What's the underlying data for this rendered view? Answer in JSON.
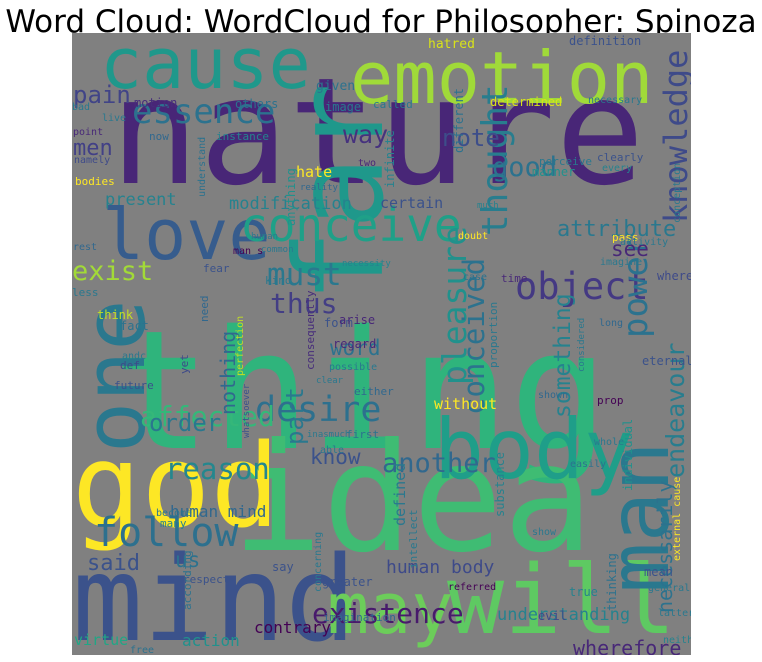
{
  "title": "Word Cloud:  WordCloud for  Philosopher: Spinoza",
  "chart_data": {
    "type": "wordcloud",
    "title": "Word Cloud:  WordCloud for  Philosopher: Spinoza",
    "background_color": "#808080",
    "palette": "viridis",
    "words": [
      {
        "text": "nature",
        "color": "#482677"
      },
      {
        "text": "thing",
        "color": "#2fb47c"
      },
      {
        "text": "idea",
        "color": "#3fbc73"
      },
      {
        "text": "emotion",
        "color": "#a0da39"
      },
      {
        "text": "mind",
        "color": "#3b528b"
      },
      {
        "text": "god",
        "color": "#fde725"
      },
      {
        "text": "will",
        "color": "#5ec962"
      },
      {
        "text": "far",
        "color": "#1f988b"
      },
      {
        "text": "cause",
        "color": "#1f988b"
      },
      {
        "text": "body",
        "color": "#1f9e89"
      },
      {
        "text": "love",
        "color": "#365c8d"
      },
      {
        "text": "one",
        "color": "#2a788e"
      },
      {
        "text": "man",
        "color": "#2a788e"
      },
      {
        "text": "may",
        "color": "#6ccd5a"
      },
      {
        "text": "essence",
        "color": "#2c728e"
      },
      {
        "text": "conceive",
        "color": "#1fa088"
      },
      {
        "text": "object",
        "color": "#443983"
      },
      {
        "text": "follow",
        "color": "#2d708e"
      },
      {
        "text": "desire",
        "color": "#2d708e"
      },
      {
        "text": "power",
        "color": "#2c728e"
      },
      {
        "text": "existence",
        "color": "#481a6c"
      },
      {
        "text": "thought",
        "color": "#287d8e"
      },
      {
        "text": "knowledge",
        "color": "#3e4a89"
      },
      {
        "text": "exist",
        "color": "#a2da37"
      },
      {
        "text": "must",
        "color": "#2a788e"
      },
      {
        "text": "reason",
        "color": "#24878e"
      },
      {
        "text": "pleasure",
        "color": "#21918c"
      },
      {
        "text": "conceived",
        "color": "#2c728e"
      },
      {
        "text": "another",
        "color": "#31688e"
      },
      {
        "text": "good",
        "color": "#2c728e"
      },
      {
        "text": "thus",
        "color": "#433e85"
      },
      {
        "text": "part",
        "color": "#2a788e"
      },
      {
        "text": "affected",
        "color": "#35b779"
      },
      {
        "text": "endeavour",
        "color": "#287d8e"
      },
      {
        "text": "pain",
        "color": "#414487"
      },
      {
        "text": "men",
        "color": "#424086"
      },
      {
        "text": "note",
        "color": "#3d4e8a"
      },
      {
        "text": "way",
        "color": "#46327e"
      },
      {
        "text": "attribute",
        "color": "#2a788e"
      },
      {
        "text": "see",
        "color": "#482878"
      },
      {
        "text": "know",
        "color": "#3b528b"
      },
      {
        "text": "said",
        "color": "#3b528b"
      },
      {
        "text": "something",
        "color": "#26828e"
      },
      {
        "text": "order",
        "color": "#2a788e"
      },
      {
        "text": "word",
        "color": "#2c728e"
      },
      {
        "text": "necessarily",
        "color": "#2c728e"
      },
      {
        "text": "us",
        "color": "#2c728e"
      },
      {
        "text": "wherefore",
        "color": "#482878"
      },
      {
        "text": "nothing",
        "color": "#31688e"
      },
      {
        "text": "defined",
        "color": "#2a788e"
      },
      {
        "text": "present",
        "color": "#26828e"
      },
      {
        "text": "modification",
        "color": "#26828e"
      },
      {
        "text": "certain",
        "color": "#3b528b"
      },
      {
        "text": "human body",
        "color": "#3e4a89"
      },
      {
        "text": "human mind",
        "color": "#31688e"
      },
      {
        "text": "understanding",
        "color": "#26828e"
      },
      {
        "text": "action",
        "color": "#21918c"
      },
      {
        "text": "contrary",
        "color": "#440154"
      },
      {
        "text": "virtue",
        "color": "#21a685"
      },
      {
        "text": "without",
        "color": "#fde725"
      },
      {
        "text": "hatred",
        "color": "#d8e219"
      },
      {
        "text": "hate",
        "color": "#fde725"
      },
      {
        "text": "given",
        "color": "#2c728e"
      },
      {
        "text": "image",
        "color": "#2a788e"
      },
      {
        "text": "motion",
        "color": "#472d7b"
      },
      {
        "text": "others",
        "color": "#2c728e"
      },
      {
        "text": "called",
        "color": "#2a788e"
      },
      {
        "text": "determined",
        "color": "#d8e219"
      },
      {
        "text": "definition",
        "color": "#3b528b"
      },
      {
        "text": "necessary",
        "color": "#2a788e"
      },
      {
        "text": "bad",
        "color": "#2a788e"
      },
      {
        "text": "live",
        "color": "#2a788e"
      },
      {
        "text": "point",
        "color": "#482878"
      },
      {
        "text": "namely",
        "color": "#3e4a89"
      },
      {
        "text": "bodies",
        "color": "#fde725"
      },
      {
        "text": "instance",
        "color": "#26828e"
      },
      {
        "text": "now",
        "color": "#31688e"
      },
      {
        "text": "understand",
        "color": "#2c728e"
      },
      {
        "text": "anything",
        "color": "#21918c"
      },
      {
        "text": "reality",
        "color": "#31688e"
      },
      {
        "text": "two",
        "color": "#482878"
      },
      {
        "text": "infinite",
        "color": "#26828e"
      },
      {
        "text": "different",
        "color": "#2c728e"
      },
      {
        "text": "perceive",
        "color": "#2a788e"
      },
      {
        "text": "clearly",
        "color": "#3b528b"
      },
      {
        "text": "every",
        "color": "#26828e"
      },
      {
        "text": "manner",
        "color": "#21918c"
      },
      {
        "text": "conception",
        "color": "#2a788e"
      },
      {
        "text": "much",
        "color": "#26828e"
      },
      {
        "text": "pass",
        "color": "#fde725"
      },
      {
        "text": "doubt",
        "color": "#fde725"
      },
      {
        "text": "activity",
        "color": "#2a788e"
      },
      {
        "text": "imagine",
        "color": "#2a788e"
      },
      {
        "text": "human",
        "color": "#2a788e"
      },
      {
        "text": "common",
        "color": "#2a788e"
      },
      {
        "text": "man s",
        "color": "#440154"
      },
      {
        "text": "rest",
        "color": "#31688e"
      },
      {
        "text": "fear",
        "color": "#3b528b"
      },
      {
        "text": "kind",
        "color": "#2a788e"
      },
      {
        "text": "necessity",
        "color": "#26828e"
      },
      {
        "text": "case",
        "color": "#2c728e"
      },
      {
        "text": "time",
        "color": "#482878"
      },
      {
        "text": "whereby",
        "color": "#3e4a89"
      },
      {
        "text": "less",
        "color": "#2a788e"
      },
      {
        "text": "form",
        "color": "#3b528b"
      },
      {
        "text": "think",
        "color": "#c2df23"
      },
      {
        "text": "fact",
        "color": "#2c728e"
      },
      {
        "text": "need",
        "color": "#31688e"
      },
      {
        "text": "arise",
        "color": "#482878"
      },
      {
        "text": "consequently",
        "color": "#472d7b"
      },
      {
        "text": "long",
        "color": "#31688e"
      },
      {
        "text": "regard",
        "color": "#482878"
      },
      {
        "text": "def",
        "color": "#3e4a89"
      },
      {
        "text": "yet",
        "color": "#3e4a89"
      },
      {
        "text": "future",
        "color": "#3b528b"
      },
      {
        "text": "andc",
        "color": "#2a788e"
      },
      {
        "text": "perfection",
        "color": "#c2df23"
      },
      {
        "text": "possible",
        "color": "#2a788e"
      },
      {
        "text": "clear",
        "color": "#2a788e"
      },
      {
        "text": "either",
        "color": "#31688e"
      },
      {
        "text": "eternal",
        "color": "#3b528b"
      },
      {
        "text": "considered",
        "color": "#2a788e"
      },
      {
        "text": "proportion",
        "color": "#2a788e"
      },
      {
        "text": "prop",
        "color": "#440154"
      },
      {
        "text": "shown",
        "color": "#31688e"
      },
      {
        "text": "first",
        "color": "#2c728e"
      },
      {
        "text": "inasmuch",
        "color": "#2a788e"
      },
      {
        "text": "whatsoever",
        "color": "#3b528b"
      },
      {
        "text": "able",
        "color": "#2a788e"
      },
      {
        "text": "whole",
        "color": "#2a788e"
      },
      {
        "text": "easily",
        "color": "#2c728e"
      },
      {
        "text": "individual",
        "color": "#21918c"
      },
      {
        "text": "substance",
        "color": "#26828e"
      },
      {
        "text": "become",
        "color": "#2a788e"
      },
      {
        "text": "many",
        "color": "#26828e"
      },
      {
        "text": "intellect",
        "color": "#2a788e"
      },
      {
        "text": "show",
        "color": "#2a788e"
      },
      {
        "text": "external cause",
        "color": "#fde725"
      },
      {
        "text": "respect",
        "color": "#3b528b"
      },
      {
        "text": "say",
        "color": "#3b528b"
      },
      {
        "text": "greater",
        "color": "#3b528b"
      },
      {
        "text": "according",
        "color": "#2c728e"
      },
      {
        "text": "concerning",
        "color": "#2a788e"
      },
      {
        "text": "true",
        "color": "#26828e"
      },
      {
        "text": "referred",
        "color": "#440154"
      },
      {
        "text": "imagination",
        "color": "#31688e"
      },
      {
        "text": "evil",
        "color": "#3e4a89"
      },
      {
        "text": "thinking",
        "color": "#2c728e"
      },
      {
        "text": "mean",
        "color": "#3b528b"
      },
      {
        "text": "general",
        "color": "#2a788e"
      },
      {
        "text": "latter",
        "color": "#2a788e"
      },
      {
        "text": "neither",
        "color": "#26828e"
      },
      {
        "text": "free",
        "color": "#2c728e"
      }
    ]
  }
}
